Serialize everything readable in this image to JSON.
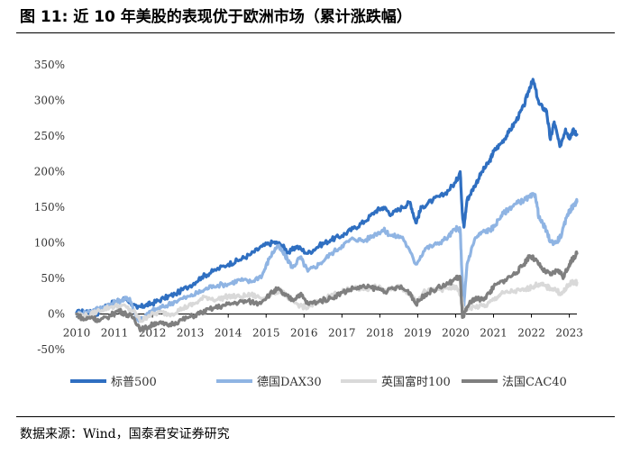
{
  "header": {
    "title": "图 11: 近 10 年美股的表现优于欧洲市场（累计涨跌幅）"
  },
  "footer": {
    "source": "数据来源：Wind，国泰君安证券研究"
  },
  "chart_data": {
    "type": "line",
    "title": "",
    "xlabel": "",
    "ylabel": "",
    "x_ticks": [
      "2010",
      "2011",
      "2012",
      "2013",
      "2014",
      "2015",
      "2016",
      "2017",
      "2018",
      "2019",
      "2020",
      "2021",
      "2022",
      "2023"
    ],
    "y_ticks": [
      "350%",
      "300%",
      "250%",
      "200%",
      "150%",
      "100%",
      "50%",
      "0%",
      "-50%"
    ],
    "ylim": [
      -50,
      350
    ],
    "xlim": [
      2010,
      2023.2
    ],
    "grid": false,
    "legend": "bottom",
    "series": [
      {
        "name": "标普500",
        "color": "#2f6fc1",
        "width": 3.2,
        "x": [
          2010.0,
          2010.3,
          2010.5,
          2010.7,
          2011.0,
          2011.3,
          2011.6,
          2011.8,
          2012.0,
          2012.3,
          2012.6,
          2013.0,
          2013.3,
          2013.6,
          2014.0,
          2014.3,
          2014.6,
          2014.9,
          2015.2,
          2015.4,
          2015.6,
          2015.8,
          2016.1,
          2016.4,
          2016.7,
          2017.0,
          2017.3,
          2017.6,
          2017.9,
          2018.1,
          2018.3,
          2018.6,
          2018.8,
          2018.95,
          2019.1,
          2019.4,
          2019.7,
          2020.0,
          2020.12,
          2020.18,
          2020.22,
          2020.3,
          2020.5,
          2020.7,
          2020.9,
          2021.0,
          2021.2,
          2021.4,
          2021.6,
          2021.8,
          2021.95,
          2022.05,
          2022.2,
          2022.4,
          2022.5,
          2022.6,
          2022.75,
          2022.9,
          2023.0,
          2023.1,
          2023.2
        ],
        "y": [
          2,
          4,
          -2,
          10,
          16,
          22,
          8,
          12,
          15,
          22,
          28,
          40,
          52,
          60,
          70,
          76,
          84,
          95,
          101,
          97,
          86,
          95,
          85,
          96,
          104,
          110,
          120,
          130,
          145,
          150,
          140,
          150,
          157,
          128,
          150,
          160,
          168,
          185,
          200,
          140,
          122,
          160,
          180,
          200,
          215,
          228,
          240,
          255,
          272,
          292,
          318,
          328,
          295,
          285,
          245,
          270,
          235,
          260,
          248,
          258,
          252
        ]
      },
      {
        "name": "德国DAX30",
        "color": "#8fb4e3",
        "width": 3.2,
        "x": [
          2010.0,
          2010.3,
          2010.6,
          2010.9,
          2011.2,
          2011.4,
          2011.6,
          2011.8,
          2012.0,
          2012.3,
          2012.6,
          2013.0,
          2013.3,
          2013.6,
          2014.0,
          2014.3,
          2014.6,
          2014.9,
          2015.1,
          2015.3,
          2015.5,
          2015.7,
          2015.9,
          2016.1,
          2016.4,
          2016.7,
          2017.0,
          2017.3,
          2017.6,
          2017.9,
          2018.1,
          2018.3,
          2018.6,
          2018.95,
          2019.2,
          2019.5,
          2019.8,
          2020.0,
          2020.12,
          2020.18,
          2020.22,
          2020.3,
          2020.5,
          2020.7,
          2020.9,
          2021.0,
          2021.2,
          2021.4,
          2021.6,
          2021.8,
          2021.95,
          2022.1,
          2022.2,
          2022.35,
          2022.5,
          2022.65,
          2022.8,
          2022.95,
          2023.05,
          2023.15,
          2023.2
        ],
        "y": [
          0,
          3,
          8,
          14,
          20,
          22,
          -8,
          -4,
          5,
          10,
          18,
          25,
          32,
          40,
          42,
          48,
          45,
          55,
          80,
          96,
          82,
          65,
          80,
          60,
          70,
          84,
          96,
          106,
          103,
          113,
          118,
          110,
          108,
          70,
          92,
          98,
          108,
          120,
          118,
          40,
          12,
          70,
          105,
          115,
          118,
          122,
          138,
          148,
          155,
          160,
          164,
          168,
          135,
          122,
          102,
          100,
          112,
          140,
          148,
          155,
          158
        ]
      },
      {
        "name": "英国富时100",
        "color": "#d9d9d9",
        "width": 3.2,
        "x": [
          2010.0,
          2010.3,
          2010.6,
          2010.9,
          2011.2,
          2011.5,
          2011.7,
          2011.9,
          2012.2,
          2012.5,
          2012.8,
          2013.1,
          2013.4,
          2013.7,
          2014.0,
          2014.3,
          2014.6,
          2014.9,
          2015.2,
          2015.4,
          2015.6,
          2015.9,
          2016.1,
          2016.4,
          2016.7,
          2017.0,
          2017.3,
          2017.6,
          2017.9,
          2018.2,
          2018.5,
          2018.8,
          2018.95,
          2019.2,
          2019.5,
          2019.8,
          2020.0,
          2020.15,
          2020.22,
          2020.3,
          2020.5,
          2020.8,
          2021.0,
          2021.2,
          2021.5,
          2021.8,
          2022.0,
          2022.2,
          2022.4,
          2022.6,
          2022.8,
          2022.9,
          2023.0,
          2023.1,
          2023.2
        ],
        "y": [
          0,
          -3,
          5,
          10,
          12,
          4,
          -10,
          -2,
          2,
          0,
          8,
          14,
          24,
          20,
          25,
          24,
          27,
          22,
          30,
          34,
          20,
          12,
          8,
          18,
          26,
          31,
          36,
          35,
          38,
          32,
          40,
          28,
          20,
          32,
          34,
          36,
          38,
          25,
          0,
          8,
          10,
          12,
          20,
          28,
          32,
          33,
          38,
          42,
          38,
          35,
          28,
          35,
          42,
          45,
          44
        ]
      },
      {
        "name": "法国CAC40",
        "color": "#7f7f7f",
        "width": 3.2,
        "x": [
          2010.0,
          2010.2,
          2010.4,
          2010.6,
          2010.9,
          2011.1,
          2011.3,
          2011.5,
          2011.7,
          2011.9,
          2012.1,
          2012.4,
          2012.7,
          2013.0,
          2013.3,
          2013.6,
          2013.9,
          2014.2,
          2014.5,
          2014.8,
          2015.1,
          2015.3,
          2015.5,
          2015.7,
          2015.9,
          2016.1,
          2016.4,
          2016.7,
          2017.0,
          2017.3,
          2017.6,
          2017.9,
          2018.2,
          2018.5,
          2018.8,
          2018.95,
          2019.2,
          2019.5,
          2019.8,
          2020.0,
          2020.12,
          2020.18,
          2020.22,
          2020.3,
          2020.5,
          2020.7,
          2020.9,
          2021.0,
          2021.3,
          2021.6,
          2021.8,
          2021.95,
          2022.1,
          2022.3,
          2022.5,
          2022.7,
          2022.85,
          2023.0,
          2023.1,
          2023.2
        ],
        "y": [
          0,
          -8,
          -4,
          -10,
          -2,
          5,
          0,
          -5,
          -22,
          -18,
          -12,
          -16,
          -10,
          -4,
          2,
          8,
          12,
          16,
          18,
          15,
          28,
          35,
          26,
          20,
          28,
          14,
          18,
          22,
          30,
          36,
          38,
          36,
          32,
          38,
          30,
          14,
          28,
          36,
          42,
          50,
          52,
          -5,
          -3,
          10,
          22,
          20,
          30,
          38,
          48,
          58,
          70,
          82,
          76,
          62,
          55,
          62,
          52,
          70,
          78,
          85
        ]
      }
    ]
  }
}
